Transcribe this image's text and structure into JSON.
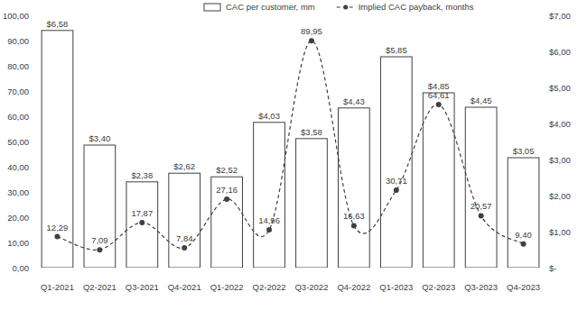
{
  "chart_data": {
    "type": "bar",
    "categories": [
      "Q1-2021",
      "Q2-2021",
      "Q3-2021",
      "Q4-2021",
      "Q1-2022",
      "Q2-2022",
      "Q3-2022",
      "Q4-2022",
      "Q1-2023",
      "Q2-2023",
      "Q3-2023",
      "Q4-2023"
    ],
    "series": [
      {
        "name": "CAC per customer, mm",
        "type": "bar",
        "color": "#ffffff",
        "axis": "y2",
        "values": [
          6.58,
          3.4,
          2.38,
          2.62,
          2.52,
          4.03,
          3.58,
          4.43,
          5.85,
          4.85,
          4.45,
          3.05
        ],
        "value_labels": [
          "$6,58",
          "$3,40",
          "$2,38",
          "$2,62",
          "$2,52",
          "$4,03",
          "$3,58",
          "$4,43",
          "$5,85",
          "$4,85",
          "$4,45",
          "$3,05"
        ]
      },
      {
        "name": "Implied CAC payback, months",
        "type": "line",
        "color": "#404040",
        "line_style": "dashed",
        "marker": "circle",
        "values": [
          12.29,
          7.09,
          17.87,
          7.84,
          27.16,
          14.96,
          89.95,
          16.63,
          30.71,
          64.61,
          20.57,
          9.4
        ],
        "value_labels": [
          "12,29",
          "7,09",
          "17,87",
          "7,84",
          "27,16",
          "14,96",
          "89,95",
          "16,63",
          "30,71",
          "64,61",
          "20,57",
          "9,40"
        ]
      }
    ],
    "ylim": [
      0,
      100
    ],
    "yticks": [
      {
        "value": 0,
        "label": "0,00"
      },
      {
        "value": 10,
        "label": "10,00"
      },
      {
        "value": 20,
        "label": "20,00"
      },
      {
        "value": 30,
        "label": "30,00"
      },
      {
        "value": 40,
        "label": "40,00"
      },
      {
        "value": 50,
        "label": "50,00"
      },
      {
        "value": 60,
        "label": "60,00"
      },
      {
        "value": 70,
        "label": "70,00"
      },
      {
        "value": 80,
        "label": "80,00"
      },
      {
        "value": 90,
        "label": "90,00"
      },
      {
        "value": 100,
        "label": "100,00"
      }
    ],
    "y2lim": [
      0,
      7
    ],
    "y2ticks": [
      {
        "value": 0,
        "label": "$-"
      },
      {
        "value": 1,
        "label": "$1,00"
      },
      {
        "value": 2,
        "label": "$2,00"
      },
      {
        "value": 3,
        "label": "$3,00"
      },
      {
        "value": 4,
        "label": "$4,00"
      },
      {
        "value": 5,
        "label": "$5,00"
      },
      {
        "value": 6,
        "label": "$6,00"
      },
      {
        "value": 7,
        "label": "$7,00"
      }
    ],
    "data_labels": true,
    "legend": "top",
    "grid": false
  }
}
